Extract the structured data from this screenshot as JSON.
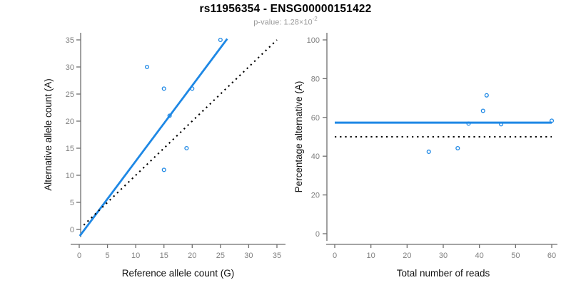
{
  "header": {
    "title": "rs11956354 - ENSG00000151422",
    "subtitle_text": "p-value: 1.28×10",
    "subtitle_exponent": "-2"
  },
  "colors": {
    "accent_blue": "#1E88E5",
    "dotted_black": "#000000",
    "axis_gray": "#6e6e6e",
    "tick_label_gray": "#808080",
    "subtitle_gray": "#9b9b9b",
    "title_black": "#000000"
  },
  "chart_data": [
    {
      "id": "allele-count-scatter",
      "type": "scatter",
      "xlabel": "Reference allele count (G)",
      "ylabel": "Alternative allele count (A)",
      "xlim": [
        0,
        35
      ],
      "ylim": [
        0,
        35
      ],
      "xticks": [
        0,
        5,
        10,
        15,
        20,
        25,
        30,
        35
      ],
      "yticks": [
        0,
        5,
        10,
        15,
        20,
        25,
        30,
        35
      ],
      "grid": false,
      "legend": false,
      "points": [
        [
          12,
          30
        ],
        [
          15,
          26
        ],
        [
          15,
          11
        ],
        [
          16,
          21
        ],
        [
          19,
          15
        ],
        [
          20,
          26
        ],
        [
          25,
          35
        ]
      ],
      "lines": [
        {
          "name": "fit-line",
          "style": "solid",
          "color": "blue",
          "x1": 0.1,
          "y1": -1.2,
          "x2": 26.2,
          "y2": 35.2
        },
        {
          "name": "identity-line",
          "style": "dotted",
          "color": "black",
          "x1": 0.8,
          "y1": 0.8,
          "x2": 35,
          "y2": 35
        }
      ]
    },
    {
      "id": "percentage-vs-reads-scatter",
      "type": "scatter",
      "xlabel": "Total number of reads",
      "ylabel": "Percentage alternative (A)",
      "xlim": [
        0,
        60
      ],
      "ylim": [
        0,
        100
      ],
      "xticks": [
        0,
        10,
        20,
        30,
        40,
        50,
        60
      ],
      "yticks": [
        0,
        20,
        40,
        60,
        80,
        100
      ],
      "grid": false,
      "legend": false,
      "points": [
        [
          26,
          42.3
        ],
        [
          34,
          44.1
        ],
        [
          37,
          56.8
        ],
        [
          41,
          63.4
        ],
        [
          42,
          71.4
        ],
        [
          46,
          56.5
        ],
        [
          60,
          58.3
        ]
      ],
      "lines": [
        {
          "name": "mean-percentage-line",
          "style": "solid",
          "color": "blue",
          "x1": 0,
          "y1": 57.3,
          "x2": 60,
          "y2": 57.3
        },
        {
          "name": "expected-50-line",
          "style": "dotted",
          "color": "black",
          "x1": 0,
          "y1": 50,
          "x2": 60,
          "y2": 50
        }
      ]
    }
  ]
}
